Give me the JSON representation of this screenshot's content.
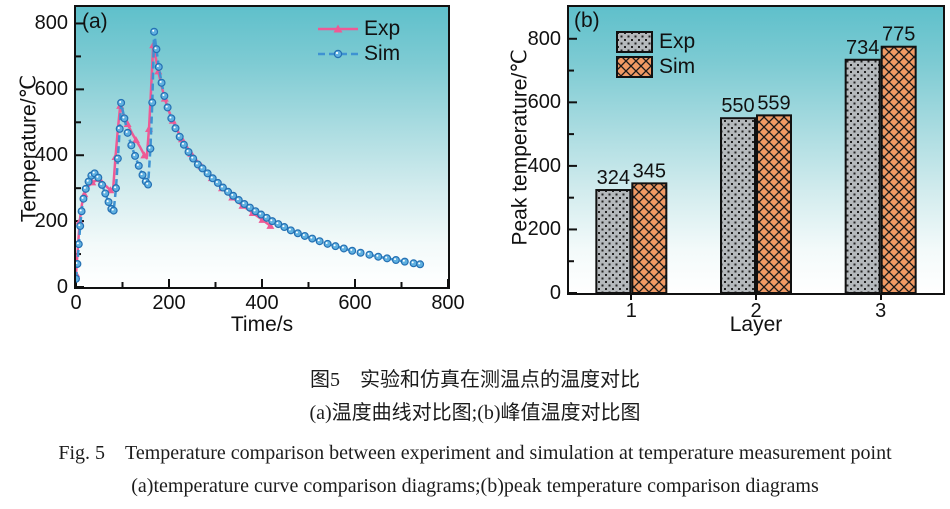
{
  "colors": {
    "exp_pink": "#ee5a95",
    "sim_blue": "#3e92d2",
    "sim_marker_fill": "#5fb0e0",
    "sim_marker_edge": "#2470b3",
    "bar_gray": "#b5b9bc",
    "bar_orange": "#f09a64",
    "axis_black": "#111111",
    "plot_gradient_top": "#5fc0cb",
    "plot_gradient_bottom": "#ffffff"
  },
  "chart_data": [
    {
      "id": "a",
      "type": "line",
      "panel_label": "(a)",
      "xlabel": "Time/s",
      "ylabel": "Temperature/℃",
      "xlim": [
        0,
        800
      ],
      "ylim": [
        0,
        850
      ],
      "x_major_ticks": [
        0,
        200,
        400,
        600,
        800
      ],
      "y_major_ticks": [
        0,
        200,
        400,
        600,
        800
      ],
      "minor_tick_step": 100,
      "grid": false,
      "legend_position": "top-right-inside",
      "series": [
        {
          "name": "Exp",
          "style": "solid",
          "marker": "triangle",
          "color": "#ee5a95",
          "marker_every": 2,
          "points": [
            [
              0,
              40
            ],
            [
              4,
              120
            ],
            [
              8,
              200
            ],
            [
              13,
              252
            ],
            [
              18,
              282
            ],
            [
              26,
              305
            ],
            [
              35,
              318
            ],
            [
              45,
              324
            ],
            [
              55,
              318
            ],
            [
              65,
              306
            ],
            [
              74,
              294
            ],
            [
              80,
              300
            ],
            [
              85,
              395
            ],
            [
              90,
              480
            ],
            [
              95,
              550
            ],
            [
              103,
              521
            ],
            [
              111,
              495
            ],
            [
              120,
              468
            ],
            [
              129,
              446
            ],
            [
              138,
              424
            ],
            [
              147,
              400
            ],
            [
              152,
              391
            ],
            [
              157,
              480
            ],
            [
              161,
              590
            ],
            [
              166,
              734
            ],
            [
              171,
              700
            ],
            [
              177,
              655
            ],
            [
              184,
              610
            ],
            [
              191,
              572
            ],
            [
              199,
              537
            ],
            [
              208,
              505
            ],
            [
              218,
              475
            ],
            [
              228,
              449
            ],
            [
              238,
              426
            ],
            [
              248,
              405
            ],
            [
              259,
              385
            ],
            [
              270,
              366
            ],
            [
              281,
              348
            ],
            [
              292,
              331
            ],
            [
              303,
              315
            ],
            [
              314,
              300
            ],
            [
              325,
              286
            ],
            [
              336,
              272
            ],
            [
              347,
              259
            ],
            [
              358,
              247
            ],
            [
              369,
              236
            ],
            [
              380,
              225
            ],
            [
              391,
              214
            ],
            [
              401,
              204
            ],
            [
              411,
              193
            ],
            [
              418,
              186
            ]
          ]
        },
        {
          "name": "Sim",
          "style": "dashed",
          "marker": "circle",
          "color": "#3e92d2",
          "marker_every": 1,
          "points": [
            [
              0,
              25
            ],
            [
              3,
              70
            ],
            [
              6,
              130
            ],
            [
              9,
              185
            ],
            [
              12,
              230
            ],
            [
              16,
              268
            ],
            [
              21,
              298
            ],
            [
              27,
              320
            ],
            [
              33,
              338
            ],
            [
              40,
              345
            ],
            [
              48,
              332
            ],
            [
              56,
              310
            ],
            [
              63,
              284
            ],
            [
              70,
              258
            ],
            [
              76,
              237
            ],
            [
              81,
              232
            ],
            [
              86,
              300
            ],
            [
              90,
              390
            ],
            [
              94,
              480
            ],
            [
              97,
              559
            ],
            [
              104,
              512
            ],
            [
              111,
              468
            ],
            [
              119,
              430
            ],
            [
              127,
              398
            ],
            [
              135,
              368
            ],
            [
              143,
              340
            ],
            [
              150,
              320
            ],
            [
              155,
              311
            ],
            [
              160,
              420
            ],
            [
              164,
              560
            ],
            [
              168,
              775
            ],
            [
              173,
              722
            ],
            [
              178,
              668
            ],
            [
              184,
              620
            ],
            [
              190,
              580
            ],
            [
              197,
              545
            ],
            [
              205,
              512
            ],
            [
              214,
              482
            ],
            [
              223,
              456
            ],
            [
              232,
              432
            ],
            [
              242,
              410
            ],
            [
              252,
              390
            ],
            [
              262,
              372
            ],
            [
              272,
              360
            ],
            [
              283,
              345
            ],
            [
              294,
              330
            ],
            [
              305,
              316
            ],
            [
              316,
              302
            ],
            [
              327,
              289
            ],
            [
              338,
              277
            ],
            [
              350,
              264
            ],
            [
              362,
              252
            ],
            [
              374,
              241
            ],
            [
              386,
              230
            ],
            [
              398,
              220
            ],
            [
              410,
              210
            ],
            [
              422,
              200
            ],
            [
              435,
              191
            ],
            [
              448,
              182
            ],
            [
              462,
              172
            ],
            [
              477,
              163
            ],
            [
              492,
              155
            ],
            [
              508,
              147
            ],
            [
              524,
              139
            ],
            [
              541,
              131
            ],
            [
              558,
              124
            ],
            [
              576,
              117
            ],
            [
              594,
              110
            ],
            [
              612,
              104
            ],
            [
              631,
              98
            ],
            [
              650,
              92
            ],
            [
              669,
              87
            ],
            [
              688,
              82
            ],
            [
              707,
              77
            ],
            [
              726,
              72
            ],
            [
              740,
              69
            ]
          ]
        }
      ]
    },
    {
      "id": "b",
      "type": "bar",
      "panel_label": "(b)",
      "xlabel": "Layer",
      "ylabel": "Peak temperature/℃",
      "categories": [
        "1",
        "2",
        "3"
      ],
      "ylim": [
        0,
        900
      ],
      "y_major_ticks": [
        0,
        200,
        400,
        600,
        800
      ],
      "minor_tick_step": 100,
      "grid": false,
      "legend_position": "top-left-inside",
      "bar_value_labels": true,
      "series": [
        {
          "name": "Exp",
          "pattern": "dots",
          "fill": "#b5b9bc",
          "values": [
            324,
            550,
            734
          ]
        },
        {
          "name": "Sim",
          "pattern": "crosshatch",
          "fill": "#f09a64",
          "values": [
            345,
            559,
            775
          ]
        }
      ]
    }
  ],
  "caption": {
    "line1_zh": "图5　实验和仿真在测温点的温度对比",
    "line2_zh": "(a)温度曲线对比图;(b)峰值温度对比图",
    "line3_en": "Fig. 5　Temperature comparison between experiment and simulation at temperature measurement point",
    "line4_en": "(a)temperature curve comparison diagrams;(b)peak temperature comparison diagrams"
  }
}
